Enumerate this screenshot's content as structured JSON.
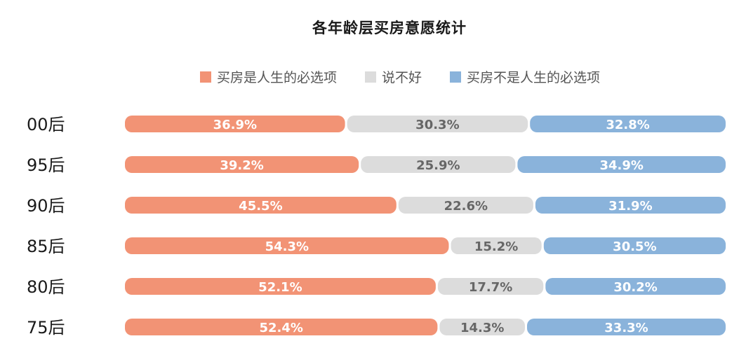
{
  "chart_data": {
    "type": "bar",
    "orientation": "horizontal",
    "stacked": true,
    "percent": true,
    "title": "各年龄层买房意愿统计",
    "legend_position": "top",
    "categories": [
      "00后",
      "95后",
      "90后",
      "85后",
      "80后",
      "75后"
    ],
    "series": [
      {
        "name": "买房是人生的必选项",
        "color": "#f29375",
        "values": [
          36.9,
          39.2,
          45.5,
          54.3,
          52.1,
          52.4
        ]
      },
      {
        "name": "说不好",
        "color": "#dcdcdc",
        "values": [
          30.3,
          25.9,
          22.6,
          15.2,
          17.7,
          14.3
        ]
      },
      {
        "name": "买房不是人生的必选项",
        "color": "#8ab3db",
        "values": [
          32.8,
          34.9,
          31.9,
          30.5,
          30.2,
          33.3
        ]
      }
    ],
    "value_suffix": "%"
  }
}
